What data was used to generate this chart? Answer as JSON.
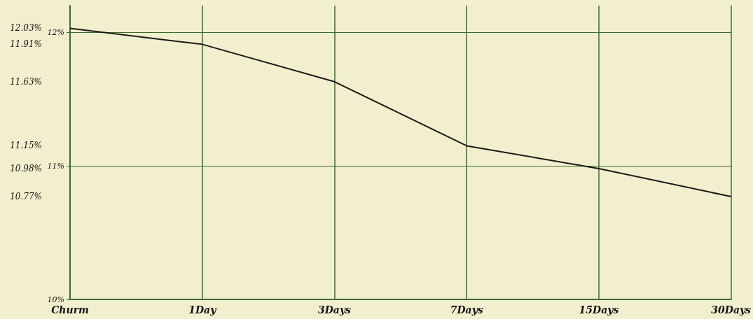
{
  "chart_data": {
    "type": "line",
    "categories": [
      "Churm",
      "1Day",
      "3Days",
      "7Days",
      "15Days",
      "30Days"
    ],
    "series": [
      {
        "color": "#1a1a1a",
        "values": [
          12.03,
          11.91,
          11.63,
          11.15,
          10.98,
          10.77
        ]
      }
    ],
    "ylim": [
      10,
      12.2
    ],
    "yticks": [
      {
        "value": 10,
        "label": "10%"
      },
      {
        "value": 11,
        "label": "11%"
      },
      {
        "value": 12,
        "label": "12%"
      }
    ],
    "y2lim": [
      10,
      12.2
    ],
    "y2ticks": [
      {
        "value": 10.77,
        "label": "10.77%"
      },
      {
        "value": 10.98,
        "label": "10.98%"
      },
      {
        "value": 11.15,
        "label": "11.15%"
      },
      {
        "value": 11.63,
        "label": "11.63%"
      },
      {
        "value": 11.91,
        "label": "11.91%"
      },
      {
        "value": 12.03,
        "label": "12.03%"
      }
    ],
    "grid": true,
    "marker": "none",
    "line_style": "solid"
  }
}
